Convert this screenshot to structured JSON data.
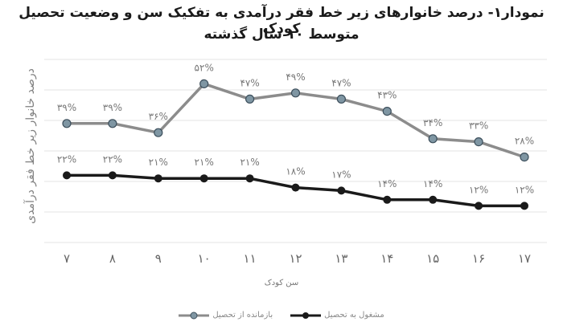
{
  "title": {
    "line1": "نمودار۱- درصد خانوارهای زیر خط فقر درآمدی به تفکیک سن و وضعیت تحصیل کودک",
    "line2": "متوسط ۱۰ سال گذشته"
  },
  "axes": {
    "ylabel": "درصد خانوار زیر خط فقر درآمدی",
    "xlabel": "سن کودک",
    "xticks": [
      "۷",
      "۸",
      "۹",
      "۱۰",
      "۱۱",
      "۱۲",
      "۱۳",
      "۱۴",
      "۱۵",
      "۱۶",
      "۱۷"
    ]
  },
  "legend": {
    "items": [
      {
        "label": "بازمانده از تحصیل",
        "color": "#8c8c8c",
        "marker": "#7f96a3"
      },
      {
        "label": "مشغول به تحصیل",
        "color": "#1a1a1a",
        "marker": "#1a1a1a"
      }
    ]
  },
  "chart_data": {
    "type": "line",
    "title": "نمودار۱- درصد خانوارهای زیر خط فقر درآمدی به تفکیک سن و وضعیت تحصیل کودک - متوسط ۱۰ سال گذشته",
    "xlabel": "سن کودک",
    "ylabel": "درصد خانوار زیر خط فقر درآمدی",
    "x": [
      7,
      8,
      9,
      10,
      11,
      12,
      13,
      14,
      15,
      16,
      17
    ],
    "series": [
      {
        "name": "بازمانده از تحصیل",
        "values": [
          39,
          39,
          36,
          52,
          47,
          49,
          47,
          43,
          34,
          33,
          28
        ],
        "labels": [
          "۳۹%",
          "۳۹%",
          "۳۶%",
          "۵۲%",
          "۴۷%",
          "۴۹%",
          "۴۷%",
          "۴۳%",
          "۳۴%",
          "۳۳%",
          "۲۸%"
        ],
        "color": "#8c8c8c"
      },
      {
        "name": "مشغول به تحصیل",
        "values": [
          22,
          22,
          21,
          21,
          21,
          18,
          17,
          14,
          14,
          12,
          12
        ],
        "labels": [
          "۲۲%",
          "۲۲%",
          "۲۱%",
          "۲۱%",
          "۲۱%",
          "۱۸%",
          "۱۷%",
          "۱۴%",
          "۱۴%",
          "۱۲%",
          "۱۲%"
        ],
        "color": "#1a1a1a"
      }
    ],
    "ylim": [
      0,
      60
    ],
    "grid": true,
    "legend_position": "bottom"
  }
}
